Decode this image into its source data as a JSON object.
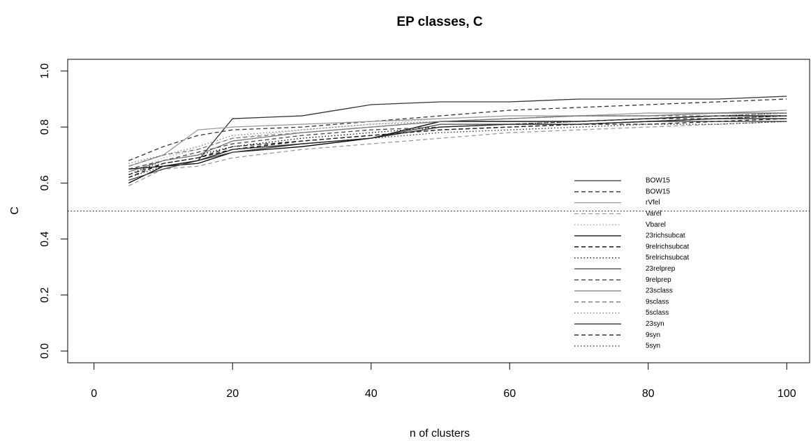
{
  "chart_data": {
    "type": "line",
    "title": "EP classes, C",
    "x_label": "n of clusters",
    "y_label": "C",
    "x": [
      5,
      10,
      15,
      20,
      30,
      40,
      50,
      60,
      70,
      80,
      90,
      100
    ],
    "xlim": [
      -3.8,
      103.3
    ],
    "ylim": [
      -0.042,
      1.042
    ],
    "xticks": [
      0,
      20,
      40,
      60,
      80,
      100
    ],
    "yticks": [
      {
        "value": 0,
        "label": "0.0"
      },
      0.2,
      0.4,
      0.6,
      0.8,
      {
        "value": 1,
        "label": "1.0"
      }
    ],
    "hline": 0.5,
    "series": [
      {
        "name": "BOW15",
        "color": "#333333",
        "dash": "solid",
        "values": [
          0.65,
          0.66,
          0.68,
          0.83,
          0.84,
          0.88,
          0.89,
          0.89,
          0.9,
          0.9,
          0.9,
          0.91
        ]
      },
      {
        "name": "BOW15",
        "color": "#333333",
        "dash": "dashed",
        "values": [
          0.68,
          0.73,
          0.77,
          0.79,
          0.8,
          0.82,
          0.84,
          0.86,
          0.87,
          0.88,
          0.89,
          0.9
        ]
      },
      {
        "name": "rVfel",
        "color": "#999999",
        "dash": "solid",
        "values": [
          0.66,
          0.7,
          0.79,
          0.8,
          0.81,
          0.82,
          0.83,
          0.84,
          0.84,
          0.85,
          0.85,
          0.86
        ]
      },
      {
        "name": "Varel",
        "color": "#999999",
        "dash": "dashed",
        "values": [
          0.59,
          0.65,
          0.66,
          0.69,
          0.72,
          0.74,
          0.76,
          0.78,
          0.79,
          0.8,
          0.81,
          0.82
        ]
      },
      {
        "name": "Vbarel",
        "color": "#aaaaaa",
        "dash": "dotted",
        "values": [
          0.64,
          0.69,
          0.72,
          0.76,
          0.79,
          0.81,
          0.83,
          0.84,
          0.84,
          0.85,
          0.85,
          0.85
        ]
      },
      {
        "name": "23richsubcat",
        "color": "#000000",
        "dash": "solid",
        "values": [
          0.6,
          0.66,
          0.67,
          0.71,
          0.73,
          0.76,
          0.82,
          0.82,
          0.82,
          0.83,
          0.84,
          0.84
        ]
      },
      {
        "name": "9relrichsubcat",
        "color": "#000000",
        "dash": "dashed",
        "values": [
          0.62,
          0.67,
          0.69,
          0.72,
          0.75,
          0.77,
          0.79,
          0.8,
          0.81,
          0.82,
          0.83,
          0.84
        ]
      },
      {
        "name": "5relrichsubcat",
        "color": "#000000",
        "dash": "dotted",
        "values": [
          0.63,
          0.68,
          0.7,
          0.73,
          0.76,
          0.78,
          0.8,
          0.81,
          0.82,
          0.83,
          0.84,
          0.85
        ]
      },
      {
        "name": "23relprep",
        "color": "#444444",
        "dash": "solid",
        "values": [
          0.61,
          0.65,
          0.68,
          0.71,
          0.74,
          0.76,
          0.81,
          0.81,
          0.81,
          0.82,
          0.82,
          0.82
        ]
      },
      {
        "name": "9relprep",
        "color": "#444444",
        "dash": "dashed",
        "values": [
          0.65,
          0.68,
          0.71,
          0.74,
          0.77,
          0.79,
          0.8,
          0.81,
          0.82,
          0.83,
          0.83,
          0.84
        ]
      },
      {
        "name": "23sclass",
        "color": "#777777",
        "dash": "solid",
        "values": [
          0.64,
          0.68,
          0.7,
          0.75,
          0.78,
          0.8,
          0.82,
          0.83,
          0.84,
          0.84,
          0.85,
          0.85
        ]
      },
      {
        "name": "9sclass",
        "color": "#777777",
        "dash": "dashed",
        "values": [
          0.66,
          0.7,
          0.72,
          0.76,
          0.78,
          0.8,
          0.82,
          0.83,
          0.84,
          0.84,
          0.84,
          0.85
        ]
      },
      {
        "name": "5sclass",
        "color": "#777777",
        "dash": "dotted",
        "values": [
          0.67,
          0.7,
          0.73,
          0.77,
          0.79,
          0.81,
          0.82,
          0.83,
          0.84,
          0.84,
          0.85,
          0.85
        ]
      },
      {
        "name": "23syn",
        "color": "#222222",
        "dash": "solid",
        "values": [
          0.65,
          0.66,
          0.68,
          0.72,
          0.74,
          0.76,
          0.8,
          0.81,
          0.81,
          0.82,
          0.83,
          0.83
        ]
      },
      {
        "name": "9syn",
        "color": "#222222",
        "dash": "dashed",
        "values": [
          0.63,
          0.67,
          0.69,
          0.73,
          0.75,
          0.77,
          0.79,
          0.8,
          0.81,
          0.81,
          0.82,
          0.83
        ]
      },
      {
        "name": "5syn",
        "color": "#222222",
        "dash": "dotted",
        "values": [
          0.62,
          0.66,
          0.68,
          0.72,
          0.74,
          0.76,
          0.78,
          0.79,
          0.8,
          0.81,
          0.81,
          0.82
        ]
      }
    ]
  }
}
